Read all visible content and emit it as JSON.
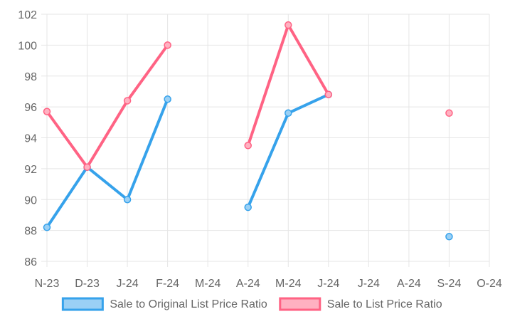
{
  "chart_data": {
    "type": "line",
    "categories": [
      "N-23",
      "D-23",
      "J-24",
      "F-24",
      "M-24",
      "A-24",
      "M-24",
      "J-24",
      "J-24",
      "A-24",
      "S-24",
      "O-24"
    ],
    "ylim": [
      86,
      102
    ],
    "yticks": [
      86,
      88,
      90,
      92,
      94,
      96,
      98,
      100,
      102
    ],
    "grid": true,
    "legend_position": "bottom",
    "series": [
      {
        "name": "Sale to Original List Price Ratio",
        "color": "#36a2eb",
        "fill": "#9ad0f5",
        "values": [
          88.2,
          92.1,
          90.0,
          96.5,
          null,
          89.5,
          95.6,
          96.8,
          null,
          null,
          87.6,
          null
        ]
      },
      {
        "name": "Sale to List Price Ratio",
        "color": "#ff6384",
        "fill": "#ffb1c1",
        "values": [
          95.7,
          92.1,
          96.4,
          100.0,
          null,
          93.5,
          101.3,
          96.8,
          null,
          null,
          95.6,
          null
        ]
      }
    ]
  }
}
